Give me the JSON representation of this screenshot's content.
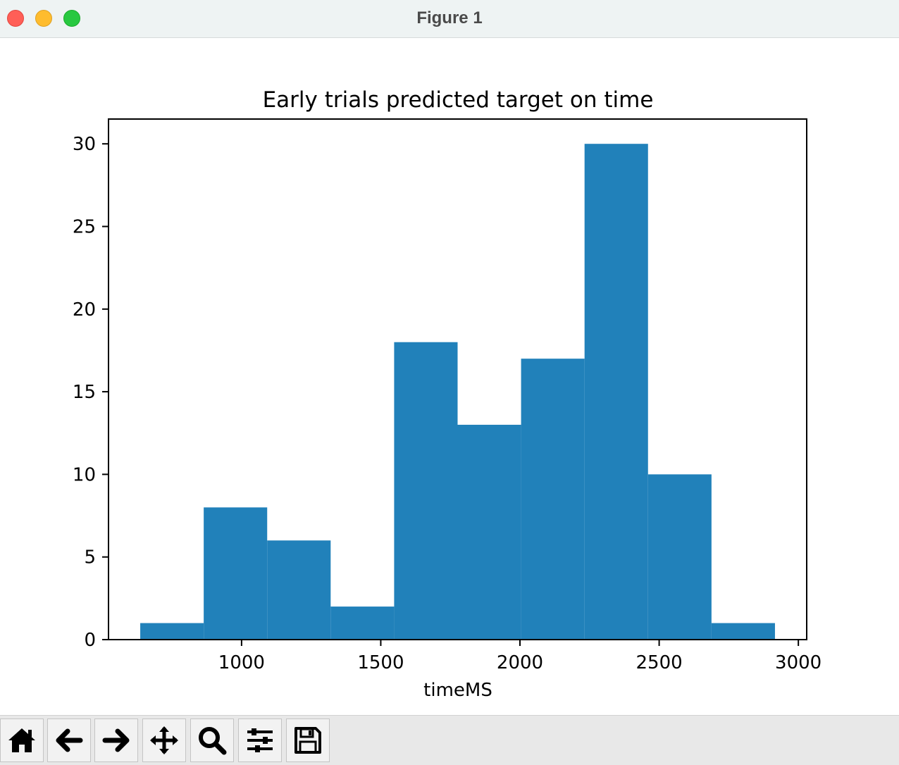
{
  "window": {
    "title": "Figure 1"
  },
  "chart_data": {
    "type": "bar",
    "title": "Early trials predicted target on time",
    "xlabel": "timeMS",
    "ylabel": "",
    "bins": [
      {
        "x0": 636,
        "x1": 864,
        "count": 1
      },
      {
        "x0": 864,
        "x1": 1092,
        "count": 8
      },
      {
        "x0": 1092,
        "x1": 1320,
        "count": 6
      },
      {
        "x0": 1320,
        "x1": 1548,
        "count": 2
      },
      {
        "x0": 1548,
        "x1": 1776,
        "count": 18
      },
      {
        "x0": 1776,
        "x1": 2004,
        "count": 13
      },
      {
        "x0": 2004,
        "x1": 2232,
        "count": 17
      },
      {
        "x0": 2232,
        "x1": 2460,
        "count": 30
      },
      {
        "x0": 2460,
        "x1": 2688,
        "count": 10
      },
      {
        "x0": 2688,
        "x1": 2916,
        "count": 1
      }
    ],
    "xlim": [
      522,
      3030
    ],
    "ylim": [
      0,
      31.5
    ],
    "xticks": [
      1000,
      1500,
      2000,
      2500,
      3000
    ],
    "yticks": [
      0,
      5,
      10,
      15,
      20,
      25,
      30
    ],
    "bar_color": "#2181ba",
    "grid": false
  },
  "toolbar": {
    "buttons": [
      {
        "name": "home-button",
        "icon": "home-icon"
      },
      {
        "name": "back-button",
        "icon": "arrow-left-icon"
      },
      {
        "name": "forward-button",
        "icon": "arrow-right-icon"
      },
      {
        "name": "pan-button",
        "icon": "move-icon"
      },
      {
        "name": "zoom-button",
        "icon": "magnifier-icon"
      },
      {
        "name": "configure-subplots-button",
        "icon": "sliders-icon"
      },
      {
        "name": "save-button",
        "icon": "floppy-disk-icon"
      }
    ]
  }
}
